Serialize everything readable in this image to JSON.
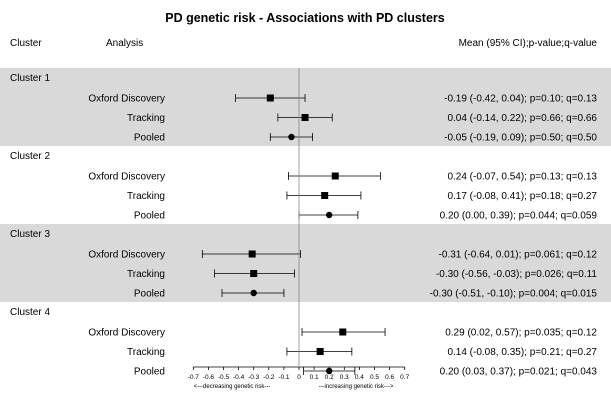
{
  "chart_data": {
    "type": "forest",
    "title": "PD genetic risk - Associations with PD clusters",
    "columns": {
      "cluster": "Cluster",
      "analysis": "Analysis",
      "estimate": "Mean (95% CI);p-value;q-value"
    },
    "xlim": [
      -0.7,
      0.7
    ],
    "xticks": [
      -0.7,
      -0.6,
      -0.5,
      -0.4,
      -0.3,
      -0.2,
      -0.1,
      0,
      0.1,
      0.2,
      0.3,
      0.4,
      0.5,
      0.6,
      0.7
    ],
    "xtick_labels": [
      "-0.7",
      "-0.6",
      "-0.5",
      "-0.4",
      "-0.3",
      "-0.2",
      "-0.1",
      "0",
      "0.1",
      "0.2",
      "0.3",
      "0.4",
      "0.5",
      "0.6",
      "0.7"
    ],
    "xlabel_left": "<---decreasing genetic risk---",
    "xlabel_right": "---increasing genetic risk--->",
    "groups": [
      {
        "name": "Cluster 1",
        "shaded": true,
        "rows": [
          {
            "analysis": "Oxford Discovery",
            "mean": -0.19,
            "lo": -0.42,
            "hi": 0.04,
            "marker": "square",
            "label": "-0.19 (-0.42, 0.04); p=0.10; q=0.13"
          },
          {
            "analysis": "Tracking",
            "mean": 0.04,
            "lo": -0.14,
            "hi": 0.22,
            "marker": "square",
            "label": "0.04 (-0.14, 0.22); p=0.66; q=0.66"
          },
          {
            "analysis": "Pooled",
            "mean": -0.05,
            "lo": -0.19,
            "hi": 0.09,
            "marker": "circle",
            "label": "-0.05 (-0.19, 0.09); p=0.50; q=0.50"
          }
        ]
      },
      {
        "name": "Cluster 2",
        "shaded": false,
        "rows": [
          {
            "analysis": "Oxford Discovery",
            "mean": 0.24,
            "lo": -0.07,
            "hi": 0.54,
            "marker": "square",
            "label": "0.24 (-0.07, 0.54); p=0.13; q=0.13"
          },
          {
            "analysis": "Tracking",
            "mean": 0.17,
            "lo": -0.08,
            "hi": 0.41,
            "marker": "square",
            "label": "0.17 (-0.08, 0.41); p=0.18; q=0.27"
          },
          {
            "analysis": "Pooled",
            "mean": 0.2,
            "lo": 0.0,
            "hi": 0.39,
            "marker": "circle",
            "label": "0.20 (0.00, 0.39); p=0.044; q=0.059"
          }
        ]
      },
      {
        "name": "Cluster 3",
        "shaded": true,
        "rows": [
          {
            "analysis": "Oxford Discovery",
            "mean": -0.31,
            "lo": -0.64,
            "hi": 0.01,
            "marker": "square",
            "label": "-0.31 (-0.64, 0.01); p=0.061; q=0.12"
          },
          {
            "analysis": "Tracking",
            "mean": -0.3,
            "lo": -0.56,
            "hi": -0.03,
            "marker": "square",
            "label": "-0.30 (-0.56, -0.03); p=0.026; q=0.11"
          },
          {
            "analysis": "Pooled",
            "mean": -0.3,
            "lo": -0.51,
            "hi": -0.1,
            "marker": "circle",
            "label": "-0.30 (-0.51, -0.10); p=0.004; q=0.015"
          }
        ]
      },
      {
        "name": "Cluster 4",
        "shaded": false,
        "rows": [
          {
            "analysis": "Oxford Discovery",
            "mean": 0.29,
            "lo": 0.02,
            "hi": 0.57,
            "marker": "square",
            "label": "0.29 (0.02, 0.57); p=0.035; q=0.12"
          },
          {
            "analysis": "Tracking",
            "mean": 0.14,
            "lo": -0.08,
            "hi": 0.35,
            "marker": "square",
            "label": "0.14 (-0.08, 0.35); p=0.21; q=0.27"
          },
          {
            "analysis": "Pooled",
            "mean": 0.2,
            "lo": 0.03,
            "hi": 0.37,
            "marker": "circle",
            "label": "0.20 (0.03, 0.37); p=0.021; q=0.043"
          }
        ]
      }
    ],
    "colors": {
      "band": "#d9d9d9",
      "marker": "#000000",
      "zero_line": "#888888"
    }
  }
}
